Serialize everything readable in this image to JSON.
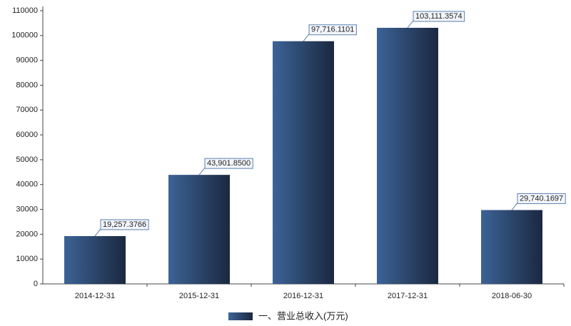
{
  "chart_data": {
    "type": "bar",
    "categories": [
      "2014-12-31",
      "2015-12-31",
      "2016-12-31",
      "2017-12-31",
      "2018-06-30"
    ],
    "series": [
      {
        "name": "一、营业总收入(万元)",
        "color": "#2b4570",
        "values": [
          19257.3766,
          43901.85,
          97716.1101,
          103111.3574,
          29740.1697
        ],
        "value_labels": [
          "19,257.3766",
          "43,901.8500",
          "97,716.1101",
          "103,111.3574",
          "29,740.1697"
        ]
      }
    ],
    "ylim": [
      0,
      110000
    ],
    "yticks": [
      0,
      10000,
      20000,
      30000,
      40000,
      50000,
      60000,
      70000,
      80000,
      90000,
      100000,
      110000
    ],
    "legend": "bottom"
  }
}
